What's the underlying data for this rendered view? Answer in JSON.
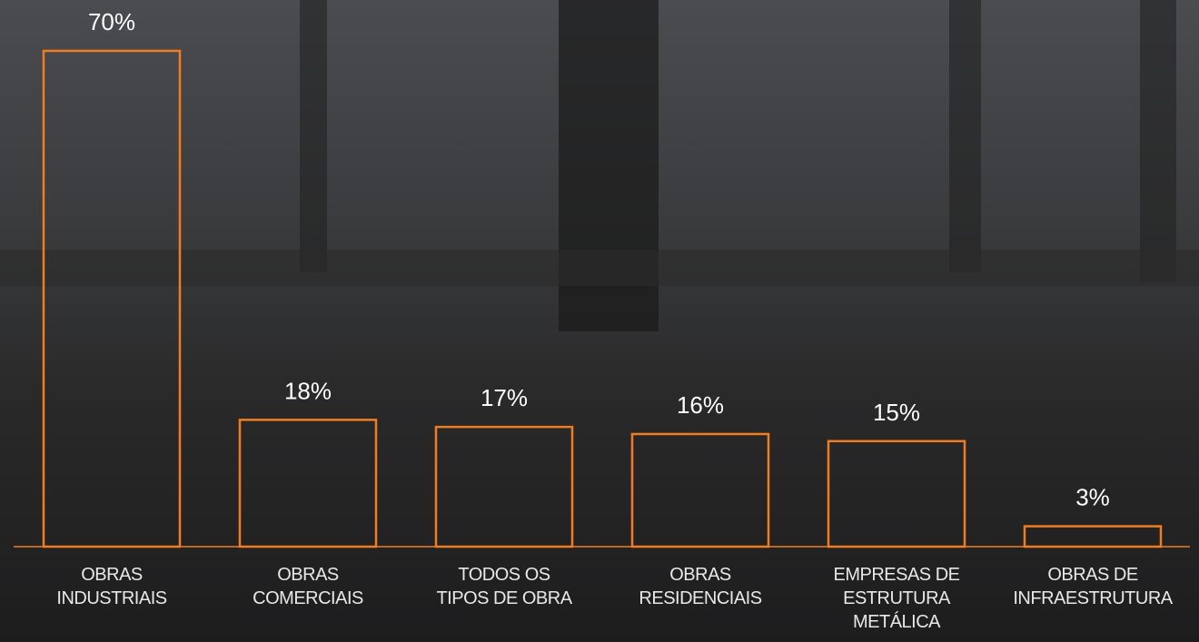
{
  "chart_data": {
    "type": "bar",
    "categories": [
      "OBRAS\nINDUSTRIAIS",
      "OBRAS\nCOMERCIAIS",
      "TODOS OS\nTIPOS DE OBRA",
      "OBRAS\nRESIDENCIAIS",
      "EMPRESAS DE\nESTRUTURA\nMETÁLICA",
      "OBRAS DE\nINFRAESTRUTURA"
    ],
    "values": [
      70,
      18,
      17,
      16,
      15,
      3
    ],
    "value_labels": [
      "70%",
      "18%",
      "17%",
      "16%",
      "15%",
      "3%"
    ],
    "color": "#f07d22",
    "ylim": [
      0,
      70
    ]
  }
}
